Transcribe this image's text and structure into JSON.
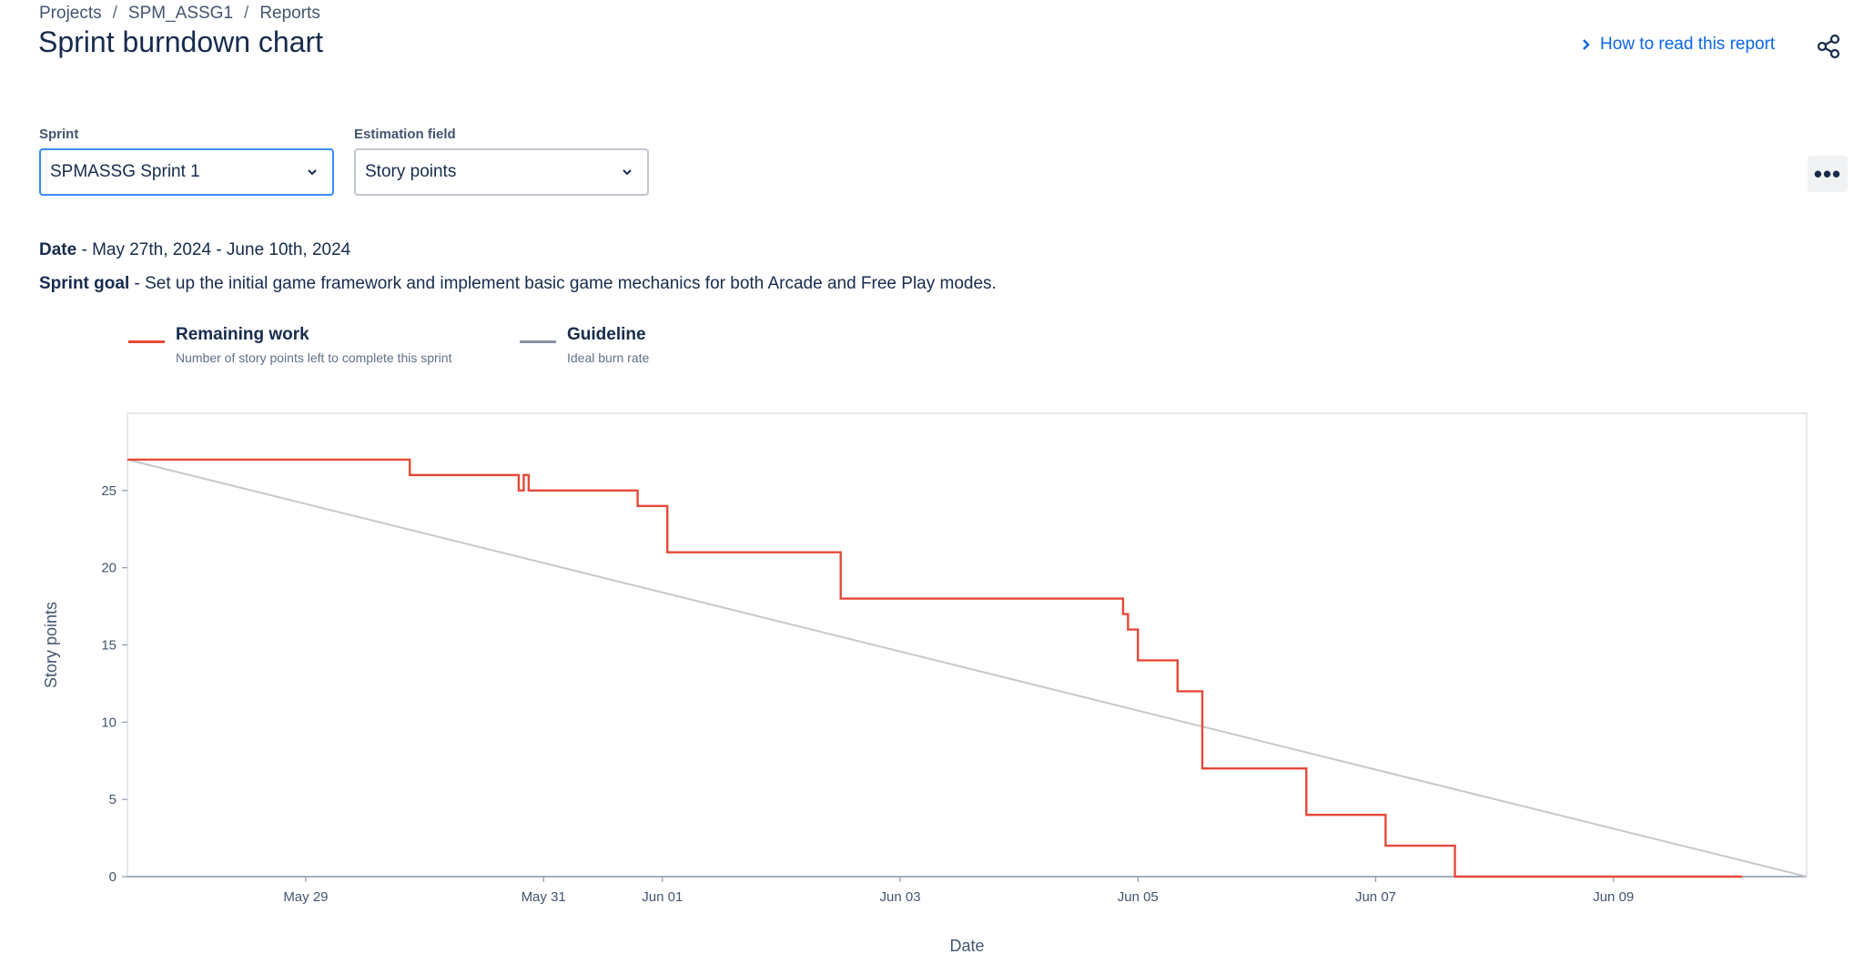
{
  "breadcrumb": {
    "projects": "Projects",
    "project": "SPM_ASSG1",
    "reports": "Reports",
    "sep": "/"
  },
  "page": {
    "title": "Sprint burndown chart"
  },
  "help": {
    "label": "How to read this report"
  },
  "filters": {
    "sprint_label": "Sprint",
    "sprint_value": "SPMASSG Sprint 1",
    "estimation_label": "Estimation field",
    "estimation_value": "Story points"
  },
  "sprint_info": {
    "date_label": "Date",
    "date_value": " - May 27th, 2024 - June 10th, 2024",
    "goal_label": "Sprint goal",
    "goal_value": " - Set up the initial game framework and implement basic game mechanics for both Arcade and Free Play modes."
  },
  "legend": {
    "remaining_title": "Remaining work",
    "remaining_desc": "Number of story points left to complete this sprint",
    "guideline_title": "Guideline",
    "guideline_desc": "Ideal burn rate"
  },
  "colors": {
    "remaining": "#e5493a",
    "guideline": "#c8c8c8",
    "accent": "#0c66e4"
  },
  "chart_data": {
    "type": "line",
    "xlabel": "Date",
    "ylabel": "Story points",
    "xlim": [
      "2024-05-27T12:00",
      "2024-06-10T15:00"
    ],
    "ylim": [
      0,
      30
    ],
    "yticks": [
      "0",
      "5",
      "10",
      "15",
      "20",
      "25"
    ],
    "xticks": [
      {
        "x": "2024-05-29",
        "label": "May 29"
      },
      {
        "x": "2024-05-31",
        "label": "May 31"
      },
      {
        "x": "2024-06-01",
        "label": "Jun 01"
      },
      {
        "x": "2024-06-03",
        "label": "Jun 03"
      },
      {
        "x": "2024-06-05",
        "label": "Jun 05"
      },
      {
        "x": "2024-06-07",
        "label": "Jun 07"
      },
      {
        "x": "2024-06-09",
        "label": "Jun 09"
      }
    ],
    "series": [
      {
        "name": "Remaining work",
        "step": true,
        "points": [
          {
            "x": "2024-05-27T12:00",
            "y": 27
          },
          {
            "x": "2024-05-29T21:00",
            "y": 26
          },
          {
            "x": "2024-05-30T19:00",
            "y": 25
          },
          {
            "x": "2024-05-30T20:00",
            "y": 26
          },
          {
            "x": "2024-05-30T21:00",
            "y": 25
          },
          {
            "x": "2024-05-31T19:00",
            "y": 24
          },
          {
            "x": "2024-06-01T01:00",
            "y": 21
          },
          {
            "x": "2024-06-02T12:00",
            "y": 18
          },
          {
            "x": "2024-06-04T21:00",
            "y": 17
          },
          {
            "x": "2024-06-04T22:00",
            "y": 16
          },
          {
            "x": "2024-06-05T00:00",
            "y": 14
          },
          {
            "x": "2024-06-05T08:00",
            "y": 12
          },
          {
            "x": "2024-06-05T13:00",
            "y": 7
          },
          {
            "x": "2024-06-06T10:00",
            "y": 4
          },
          {
            "x": "2024-06-07T02:00",
            "y": 2
          },
          {
            "x": "2024-06-07T16:00",
            "y": 0
          },
          {
            "x": "2024-06-10T02:00",
            "y": 0
          }
        ]
      },
      {
        "name": "Guideline",
        "points": [
          {
            "x": "2024-05-27T12:00",
            "y": 27
          },
          {
            "x": "2024-06-10T15:00",
            "y": 0
          }
        ]
      }
    ]
  }
}
